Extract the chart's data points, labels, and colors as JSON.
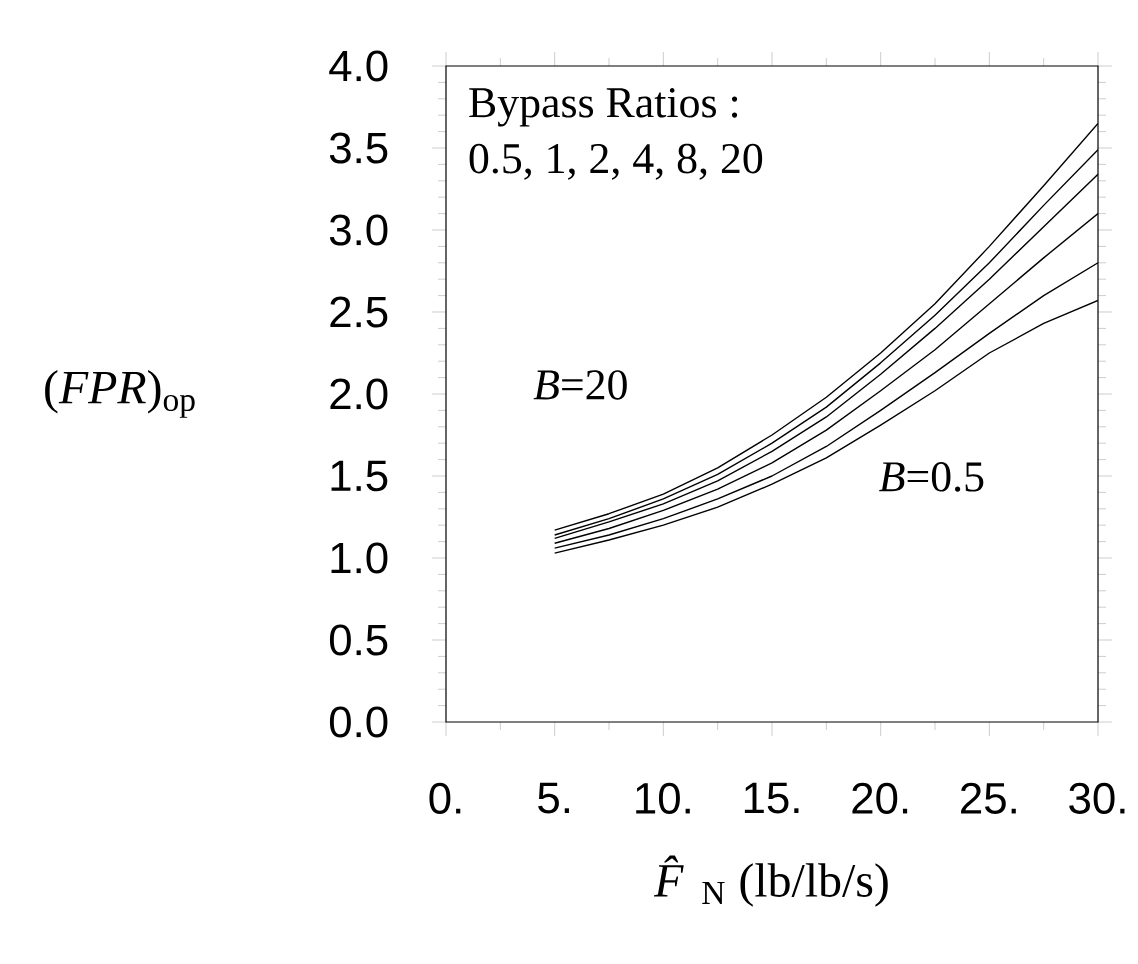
{
  "chart_data": {
    "type": "line",
    "xlabel": "*F̂*$_{N}$  (lb/lb/s)",
    "ylabel": "(*FPR*)$_{op}$",
    "x": [
      5,
      7.5,
      10,
      12.5,
      15,
      17.5,
      20,
      22.5,
      25,
      27.5,
      30
    ],
    "series": [
      {
        "color": "#000000",
        "values": [
          1.17,
          1.27,
          1.39,
          1.55,
          1.75,
          1.98,
          2.25,
          2.55,
          2.9,
          3.27,
          3.65
        ]
      },
      {
        "color": "#000000",
        "values": [
          1.14,
          1.24,
          1.36,
          1.51,
          1.7,
          1.92,
          2.19,
          2.48,
          2.8,
          3.15,
          3.49
        ]
      },
      {
        "color": "#000000",
        "values": [
          1.12,
          1.22,
          1.33,
          1.47,
          1.65,
          1.86,
          2.12,
          2.4,
          2.7,
          3.02,
          3.34
        ]
      },
      {
        "color": "#000000",
        "values": [
          1.09,
          1.18,
          1.29,
          1.42,
          1.58,
          1.78,
          2.02,
          2.27,
          2.55,
          2.83,
          3.1
        ]
      },
      {
        "color": "#000000",
        "values": [
          1.06,
          1.14,
          1.24,
          1.36,
          1.5,
          1.68,
          1.9,
          2.13,
          2.37,
          2.6,
          2.8
        ]
      },
      {
        "color": "#000000",
        "values": [
          1.03,
          1.11,
          1.2,
          1.31,
          1.45,
          1.61,
          1.81,
          2.02,
          2.25,
          2.43,
          2.57
        ]
      }
    ],
    "xlim": [
      0,
      30
    ],
    "xticks": [
      {
        "value": 0,
        "label": "0."
      },
      {
        "value": 5,
        "label": "5."
      },
      {
        "value": 10,
        "label": "10."
      },
      {
        "value": 15,
        "label": "15."
      },
      {
        "value": 20,
        "label": "20."
      },
      {
        "value": 25,
        "label": "25."
      },
      {
        "value": 30,
        "label": "30."
      }
    ],
    "ylim": [
      0,
      4
    ],
    "yticks": [
      {
        "value": 0,
        "label": "0.0"
      },
      {
        "value": 0.5,
        "label": "0.5"
      },
      {
        "value": 1,
        "label": "1.0"
      },
      {
        "value": 1.5,
        "label": "1.5"
      },
      {
        "value": 2,
        "label": "2.0"
      },
      {
        "value": 2.5,
        "label": "2.5"
      },
      {
        "value": 3,
        "label": "3.0"
      },
      {
        "value": 3.5,
        "label": "3.5"
      },
      {
        "value": 4,
        "label": "4.0"
      }
    ],
    "annotations": [
      "Bypass Ratios :",
      "0.5, 1, 2, 4, 8, 20",
      "*B*=20",
      "*B*=0.5"
    ],
    "grid": false,
    "marker": "none",
    "line_style": "solid"
  }
}
